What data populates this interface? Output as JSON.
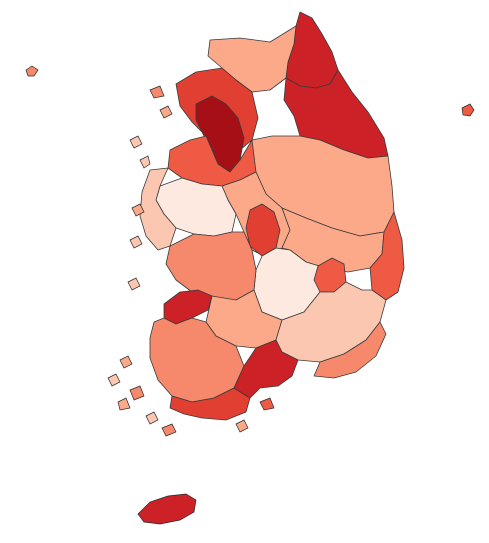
{
  "map": {
    "type": "choropleth",
    "subject": "South Korea",
    "title": "",
    "legend": null,
    "palette": {
      "c1": "#fde9df",
      "c2": "#fcc7b0",
      "c3": "#fca98a",
      "c4": "#f6896b",
      "c5": "#ee5a43",
      "c6": "#e13f32",
      "c7": "#cc2227",
      "c8": "#a50f15",
      "stroke": "#3a3a3a"
    },
    "regions": [
      {
        "id": "gangwon-north",
        "fill_class": "c7"
      },
      {
        "id": "gangwon-northwest",
        "fill_class": "c3"
      },
      {
        "id": "gyeonggi-north",
        "fill_class": "c6"
      },
      {
        "id": "seoul",
        "fill_class": "c8"
      },
      {
        "id": "gangwon-east",
        "fill_class": "c7"
      },
      {
        "id": "gangwon-south",
        "fill_class": "c3"
      },
      {
        "id": "gyeonggi-south",
        "fill_class": "c5"
      },
      {
        "id": "chungbuk",
        "fill_class": "c3"
      },
      {
        "id": "chungbuk-south",
        "fill_class": "c6"
      },
      {
        "id": "chungnam",
        "fill_class": "c1"
      },
      {
        "id": "chungnam-coast",
        "fill_class": "c2"
      },
      {
        "id": "gyeongbuk-north",
        "fill_class": "c3"
      },
      {
        "id": "gyeongbuk-coast",
        "fill_class": "c5"
      },
      {
        "id": "gyeongbuk-central",
        "fill_class": "c1"
      },
      {
        "id": "daegu",
        "fill_class": "c5"
      },
      {
        "id": "jeonbuk",
        "fill_class": "c4"
      },
      {
        "id": "jeonbuk-coast",
        "fill_class": "c7"
      },
      {
        "id": "jeonnam-north",
        "fill_class": "c3"
      },
      {
        "id": "jeonnam",
        "fill_class": "c4"
      },
      {
        "id": "jeonnam-south",
        "fill_class": "c6"
      },
      {
        "id": "gyeongnam",
        "fill_class": "c2"
      },
      {
        "id": "gyeongnam-south",
        "fill_class": "c7"
      },
      {
        "id": "busan-ulsan",
        "fill_class": "c4"
      },
      {
        "id": "jeju",
        "fill_class": "c7"
      },
      {
        "id": "ulleungdo",
        "fill_class": "c5"
      }
    ]
  }
}
